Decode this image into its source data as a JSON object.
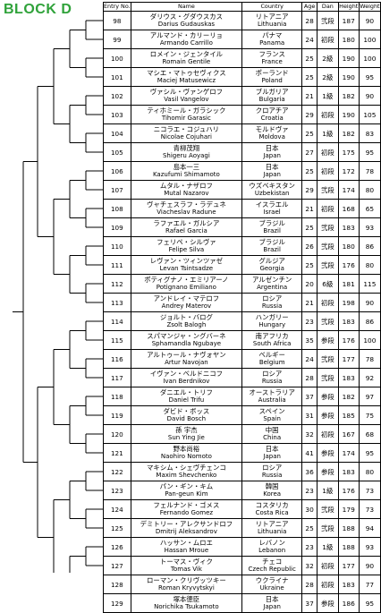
{
  "title": "BLOCK D",
  "headers": {
    "entry": "Entry No.",
    "name": "Name",
    "country": "Country",
    "age": "Age",
    "dan": "Dan",
    "height": "Height",
    "weight": "Weight"
  },
  "rows": [
    {
      "no": "98",
      "name_jp": "ダリウス・グダウスカス",
      "name_en": "Darius Gudauskas",
      "country_jp": "リトアニア",
      "country_en": "Lithuania",
      "age": "28",
      "dan": "弐段",
      "height": "187",
      "weight": "90"
    },
    {
      "no": "99",
      "name_jp": "アルマンド・カリーリョ",
      "name_en": "Armando Carrillo",
      "country_jp": "パナマ",
      "country_en": "Panama",
      "age": "24",
      "dan": "初段",
      "height": "180",
      "weight": "100"
    },
    {
      "no": "100",
      "name_jp": "ロメイン・ジェンタイル",
      "name_en": "Romain Gentile",
      "country_jp": "フランス",
      "country_en": "France",
      "age": "25",
      "dan": "2級",
      "height": "190",
      "weight": "100"
    },
    {
      "no": "101",
      "name_jp": "マシエ・マトゥセヴィクス",
      "name_en": "Maciej Matusewicz",
      "country_jp": "ポーランド",
      "country_en": "Poland",
      "age": "25",
      "dan": "2級",
      "height": "190",
      "weight": "95"
    },
    {
      "no": "102",
      "name_jp": "ヴァシル・ヴァンゲロフ",
      "name_en": "Vasil Vangelov",
      "country_jp": "ブルガリア",
      "country_en": "Bulgaria",
      "age": "21",
      "dan": "1級",
      "height": "182",
      "weight": "90"
    },
    {
      "no": "103",
      "name_jp": "ティホミール・ガラシック",
      "name_en": "Tihomir Garasic",
      "country_jp": "クロアチア",
      "country_en": "Croatia",
      "age": "29",
      "dan": "初段",
      "height": "190",
      "weight": "105"
    },
    {
      "no": "104",
      "name_jp": "ニコラエ・コジュハリ",
      "name_en": "Nicolae Cojuhari",
      "country_jp": "モルドヴァ",
      "country_en": "Moldova",
      "age": "25",
      "dan": "1級",
      "height": "182",
      "weight": "83"
    },
    {
      "no": "105",
      "name_jp": "青柳茂翔",
      "name_en": "Shigeru Aoyagi",
      "country_jp": "日本",
      "country_en": "Japan",
      "age": "27",
      "dan": "初段",
      "height": "175",
      "weight": "95"
    },
    {
      "no": "106",
      "name_jp": "島本一三",
      "name_en": "Kazufumi Shimamoto",
      "country_jp": "日本",
      "country_en": "Japan",
      "age": "25",
      "dan": "初段",
      "height": "172",
      "weight": "78"
    },
    {
      "no": "107",
      "name_jp": "ムタル・ナザロフ",
      "name_en": "Mutal Nazarov",
      "country_jp": "ウズベキスタン",
      "country_en": "Uzbekistan",
      "age": "29",
      "dan": "弐段",
      "height": "174",
      "weight": "80"
    },
    {
      "no": "108",
      "name_jp": "ヴャチェスラフ・ラデュネ",
      "name_en": "Viacheslav Radune",
      "country_jp": "イスラエル",
      "country_en": "Israel",
      "age": "21",
      "dan": "初段",
      "height": "168",
      "weight": "65"
    },
    {
      "no": "109",
      "name_jp": "ラファエル・ガルシア",
      "name_en": "Rafael Garcia",
      "country_jp": "ブラジル",
      "country_en": "Brazil",
      "age": "25",
      "dan": "弐段",
      "height": "183",
      "weight": "93"
    },
    {
      "no": "110",
      "name_jp": "フェリペ・シルヴァ",
      "name_en": "Felipe Silva",
      "country_jp": "ブラジル",
      "country_en": "Brazil",
      "age": "26",
      "dan": "弐段",
      "height": "180",
      "weight": "86"
    },
    {
      "no": "111",
      "name_jp": "レヴァン・ツィンツァゼ",
      "name_en": "Levan Tsintsadze",
      "country_jp": "グルジア",
      "country_en": "Georgia",
      "age": "25",
      "dan": "弐段",
      "height": "176",
      "weight": "80"
    },
    {
      "no": "112",
      "name_jp": "ポティグナノ・エミリアーノ",
      "name_en": "Potignano Emiliano",
      "country_jp": "アルゼンチン",
      "country_en": "Argentina",
      "age": "20",
      "dan": "6級",
      "height": "181",
      "weight": "115"
    },
    {
      "no": "113",
      "name_jp": "アンドレイ・マテロフ",
      "name_en": "Andrey Materov",
      "country_jp": "ロシア",
      "country_en": "Russia",
      "age": "21",
      "dan": "初段",
      "height": "198",
      "weight": "90"
    },
    {
      "no": "114",
      "name_jp": "ジョルト・バログ",
      "name_en": "Zsolt Balogh",
      "country_jp": "ハンガリー",
      "country_en": "Hungary",
      "age": "23",
      "dan": "弐段",
      "height": "183",
      "weight": "86"
    },
    {
      "no": "115",
      "name_jp": "スパマンジャ・ングバーネ",
      "name_en": "Sphamandla Ngubaye",
      "country_jp": "南アフリカ",
      "country_en": "South Africa",
      "age": "35",
      "dan": "参段",
      "height": "176",
      "weight": "100"
    },
    {
      "no": "116",
      "name_jp": "アルトゥール・ナヴォヤン",
      "name_en": "Artur Navojan",
      "country_jp": "ベルギー",
      "country_en": "Belgium",
      "age": "24",
      "dan": "弐段",
      "height": "177",
      "weight": "78"
    },
    {
      "no": "117",
      "name_jp": "イヴァン・ベルドニコフ",
      "name_en": "Ivan Berdnikov",
      "country_jp": "ロシア",
      "country_en": "Russia",
      "age": "28",
      "dan": "弐段",
      "height": "183",
      "weight": "92"
    },
    {
      "no": "118",
      "name_jp": "ダニエル・トリフ",
      "name_en": "Daniel Trifu",
      "country_jp": "オーストラリア",
      "country_en": "Australia",
      "age": "37",
      "dan": "参段",
      "height": "182",
      "weight": "97"
    },
    {
      "no": "119",
      "name_jp": "ダビド・ボッス",
      "name_en": "David Bosch",
      "country_jp": "スペイン",
      "country_en": "Spain",
      "age": "31",
      "dan": "参段",
      "height": "185",
      "weight": "75"
    },
    {
      "no": "120",
      "name_jp": "孫 宇杰",
      "name_en": "Sun Ying Jie",
      "country_jp": "中国",
      "country_en": "China",
      "age": "32",
      "dan": "初段",
      "height": "167",
      "weight": "68"
    },
    {
      "no": "121",
      "name_jp": "野本尚裕",
      "name_en": "Naohiro Nomoto",
      "country_jp": "日本",
      "country_en": "Japan",
      "age": "41",
      "dan": "参段",
      "height": "174",
      "weight": "95"
    },
    {
      "no": "122",
      "name_jp": "マキシム・シェヴチェンコ",
      "name_en": "Maxim Shevchenko",
      "country_jp": "ロシア",
      "country_en": "Russia",
      "age": "36",
      "dan": "参段",
      "height": "183",
      "weight": "80"
    },
    {
      "no": "123",
      "name_jp": "パン・ギン・キム",
      "name_en": "Pan-geun Kim",
      "country_jp": "韓国",
      "country_en": "Korea",
      "age": "23",
      "dan": "1級",
      "height": "176",
      "weight": "73"
    },
    {
      "no": "124",
      "name_jp": "フェルナンド・ゴメス",
      "name_en": "Fernando Gomez",
      "country_jp": "コスタリカ",
      "country_en": "Costa Rica",
      "age": "30",
      "dan": "弐段",
      "height": "179",
      "weight": "73"
    },
    {
      "no": "125",
      "name_jp": "デミトリー・アレクサンドロフ",
      "name_en": "Dmitrij Aleksandrov",
      "country_jp": "リトアニア",
      "country_en": "Lithuania",
      "age": "25",
      "dan": "弐段",
      "height": "188",
      "weight": "94"
    },
    {
      "no": "126",
      "name_jp": "ハッサン・ムロエ",
      "name_en": "Hassan Mroue",
      "country_jp": "レバノン",
      "country_en": "Lebanon",
      "age": "23",
      "dan": "1級",
      "height": "188",
      "weight": "93"
    },
    {
      "no": "127",
      "name_jp": "トーマス・ヴィク",
      "name_en": "Tomas Vik",
      "country_jp": "チェコ",
      "country_en": "Czech Republic",
      "age": "32",
      "dan": "初段",
      "height": "177",
      "weight": "90"
    },
    {
      "no": "128",
      "name_jp": "ローマン・クリヴッツキー",
      "name_en": "Roman Kryvytskyi",
      "country_jp": "ウクライナ",
      "country_en": "Ukraine",
      "age": "28",
      "dan": "初段",
      "height": "183",
      "weight": "77"
    },
    {
      "no": "129",
      "name_jp": "塚本徳臣",
      "name_en": "Norichika Tsukamoto",
      "country_jp": "日本",
      "country_en": "Japan",
      "age": "37",
      "dan": "参段",
      "height": "186",
      "weight": "95"
    }
  ]
}
